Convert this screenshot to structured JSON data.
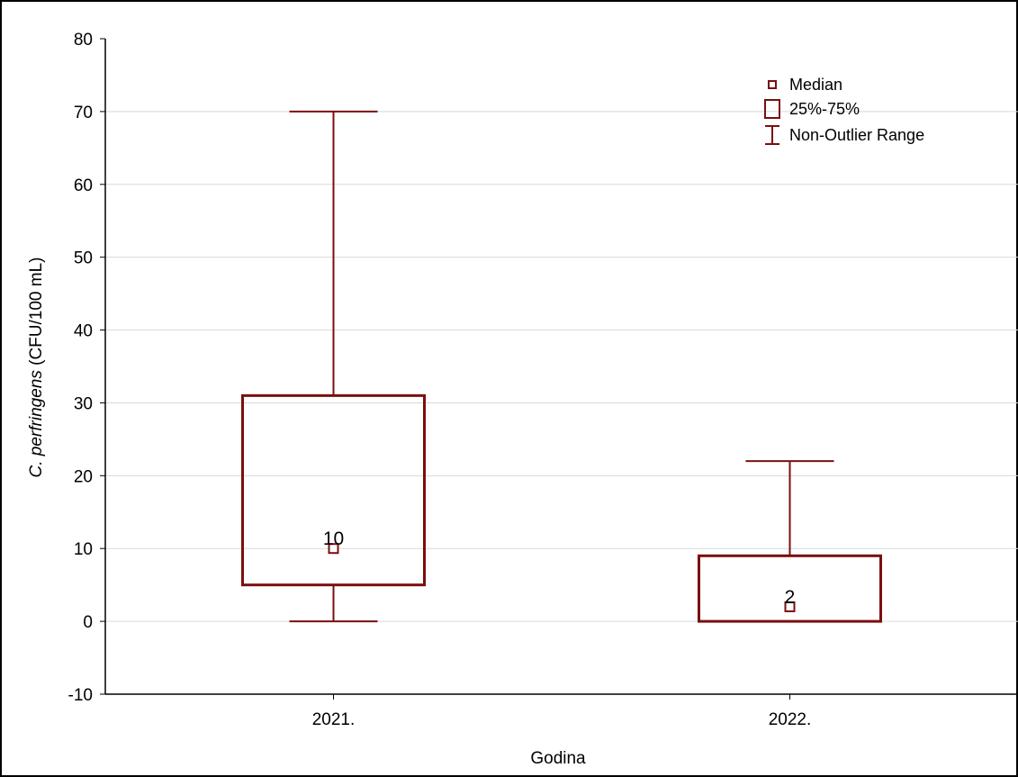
{
  "chart_data": {
    "type": "boxplot",
    "xlabel": "Godina",
    "ylabel_italic": "C. perfringens",
    "ylabel_unit": " (CFU/100 mL)",
    "ylim": [
      -10,
      80
    ],
    "yticks": [
      -10,
      0,
      10,
      20,
      30,
      40,
      50,
      60,
      70,
      80
    ],
    "grid": true,
    "legend_position": "top-right",
    "colors": {
      "box": "#7b0f0f",
      "grid": "#d9d9d9",
      "axis": "#000000"
    },
    "categories": [
      "2021.",
      "2022."
    ],
    "boxes": [
      {
        "category": "2021.",
        "min": 0,
        "q1": 5,
        "median": 10,
        "q3": 31,
        "max": 70,
        "median_label": "10"
      },
      {
        "category": "2022.",
        "min": 0,
        "q1": 0,
        "median": 2,
        "q3": 9,
        "max": 22,
        "median_label": "2"
      }
    ],
    "legend": [
      {
        "symbol": "median-marker",
        "label": "Median"
      },
      {
        "symbol": "box",
        "label": "25%-75%"
      },
      {
        "symbol": "whisker",
        "label": "Non-Outlier Range"
      }
    ]
  }
}
